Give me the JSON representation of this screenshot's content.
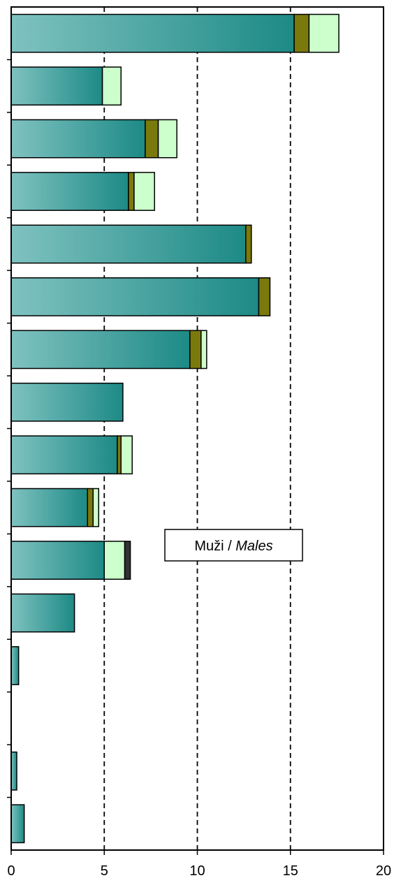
{
  "chart_data": {
    "type": "bar",
    "orientation": "horizontal",
    "stacked": true,
    "x_ticks": [
      "0",
      "5",
      "10",
      "15",
      "20"
    ],
    "xlim": [
      0,
      20
    ],
    "grid": "vertical dashed at 5, 10, 15",
    "annotation": {
      "text_main": "Muži / ",
      "text_italic": "Males"
    },
    "series": [
      {
        "color": "#1d8a86",
        "gradient_from": "#7fc2c0",
        "values": [
          15.2,
          4.9,
          7.2,
          6.3,
          12.6,
          13.3,
          9.6,
          6.0,
          5.7,
          4.1,
          5.0,
          3.4,
          0.4,
          0,
          0.3,
          0.7
        ]
      },
      {
        "color": "#7a7a0c",
        "values": [
          0.8,
          0,
          0.7,
          0.3,
          0.3,
          0.6,
          0.6,
          0,
          0.2,
          0.3,
          0,
          0,
          0,
          0,
          0,
          0
        ]
      },
      {
        "color": "#ccffcc",
        "values": [
          1.6,
          1.0,
          1.0,
          1.1,
          0,
          0,
          0.3,
          0,
          0.6,
          0.3,
          1.1,
          0,
          0,
          0,
          0,
          0
        ]
      },
      {
        "color": "#333333",
        "values": [
          0,
          0,
          0,
          0,
          0,
          0,
          0,
          0,
          0,
          0,
          0.3,
          0,
          0,
          0,
          0,
          0
        ]
      }
    ]
  }
}
